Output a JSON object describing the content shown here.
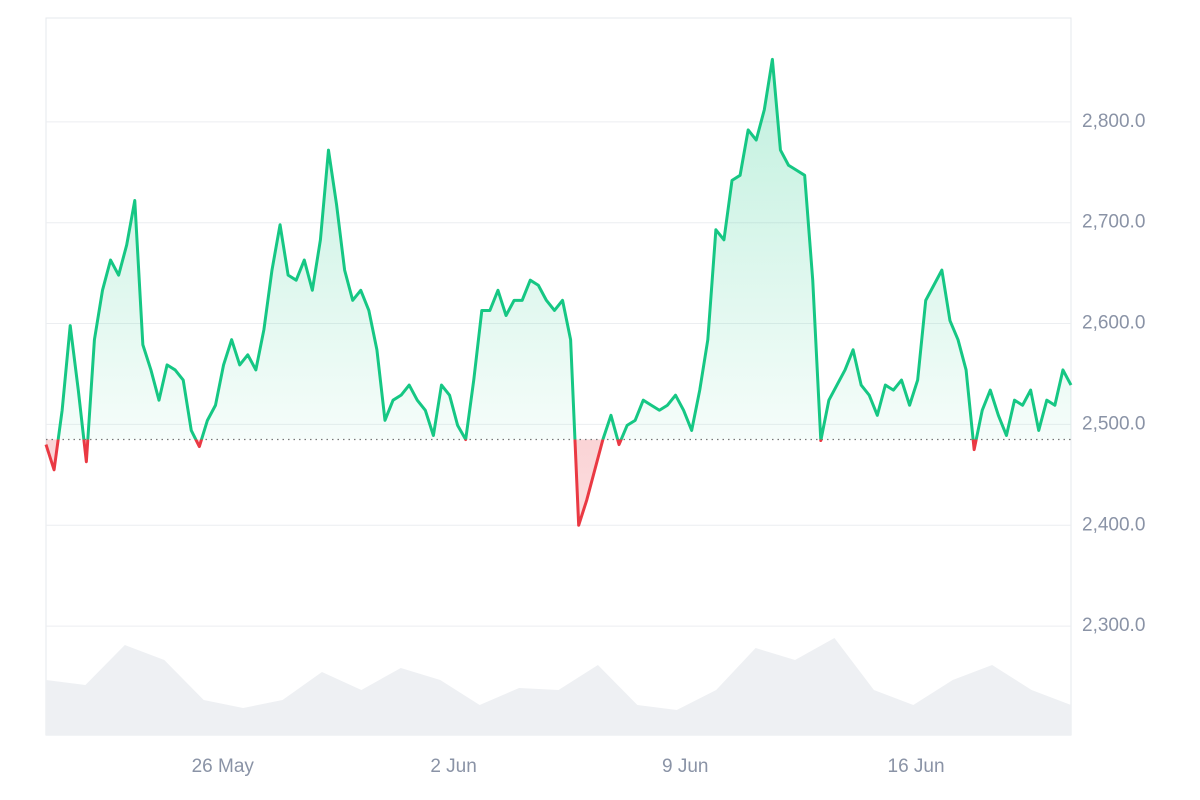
{
  "chart_data": {
    "type": "line",
    "series": [
      {
        "color": "#16c784",
        "below_color": "#ea3943",
        "values": [
          2480,
          2455,
          2514,
          2598,
          2534,
          2463,
          2584,
          2633,
          2663,
          2648,
          2678,
          2722,
          2579,
          2554,
          2524,
          2559,
          2554,
          2544,
          2494,
          2478,
          2504,
          2519,
          2559,
          2584,
          2559,
          2569,
          2554,
          2594,
          2653,
          2698,
          2648,
          2643,
          2663,
          2633,
          2683,
          2772,
          2718,
          2653,
          2623,
          2633,
          2613,
          2574,
          2504,
          2524,
          2529,
          2539,
          2524,
          2514,
          2489,
          2539,
          2529,
          2499,
          2485,
          2544,
          2613,
          2613,
          2633,
          2608,
          2623,
          2623,
          2643,
          2638,
          2623,
          2613,
          2623,
          2584,
          2400,
          2425,
          2455,
          2485,
          2509,
          2480,
          2499,
          2504,
          2524,
          2519,
          2514,
          2519,
          2529,
          2514,
          2494,
          2534,
          2584,
          2693,
          2683,
          2742,
          2747,
          2792,
          2782,
          2812,
          2862,
          2772,
          2757,
          2752,
          2747,
          2643,
          2484,
          2524,
          2539,
          2554,
          2574,
          2539,
          2529,
          2509,
          2539,
          2534,
          2544,
          2519,
          2544,
          2623,
          2638,
          2653,
          2603,
          2584,
          2554,
          2475,
          2514,
          2534,
          2509,
          2489,
          2524,
          2519,
          2534,
          2494,
          2524,
          2519,
          2554,
          2539
        ]
      }
    ],
    "baseline": 2485,
    "volume": {
      "color": "#eef0f3",
      "values": [
        55,
        50,
        90,
        75,
        35,
        27,
        35,
        63,
        45,
        67,
        55,
        30,
        47,
        45,
        70,
        30,
        25,
        45,
        87,
        75,
        97,
        45,
        30,
        55,
        70,
        45,
        30
      ],
      "vlim": [
        0,
        120
      ]
    },
    "xlim": [
      0,
      127
    ],
    "xticks": [
      {
        "value": 21.9,
        "label": "26 May"
      },
      {
        "value": 50.5,
        "label": "2 Jun"
      },
      {
        "value": 79.2,
        "label": "9 Jun"
      },
      {
        "value": 107.8,
        "label": "16 Jun"
      }
    ],
    "ylim": [
      2192,
      2903
    ],
    "yticks": [
      {
        "value": 2300,
        "label": "2,300.0"
      },
      {
        "value": 2400,
        "label": "2,400.0"
      },
      {
        "value": 2500,
        "label": "2,500.0"
      },
      {
        "value": 2600,
        "label": "2,600.0"
      },
      {
        "value": 2700,
        "label": "2,700.0"
      },
      {
        "value": 2800,
        "label": "2,800.0"
      }
    ],
    "grid": true
  }
}
